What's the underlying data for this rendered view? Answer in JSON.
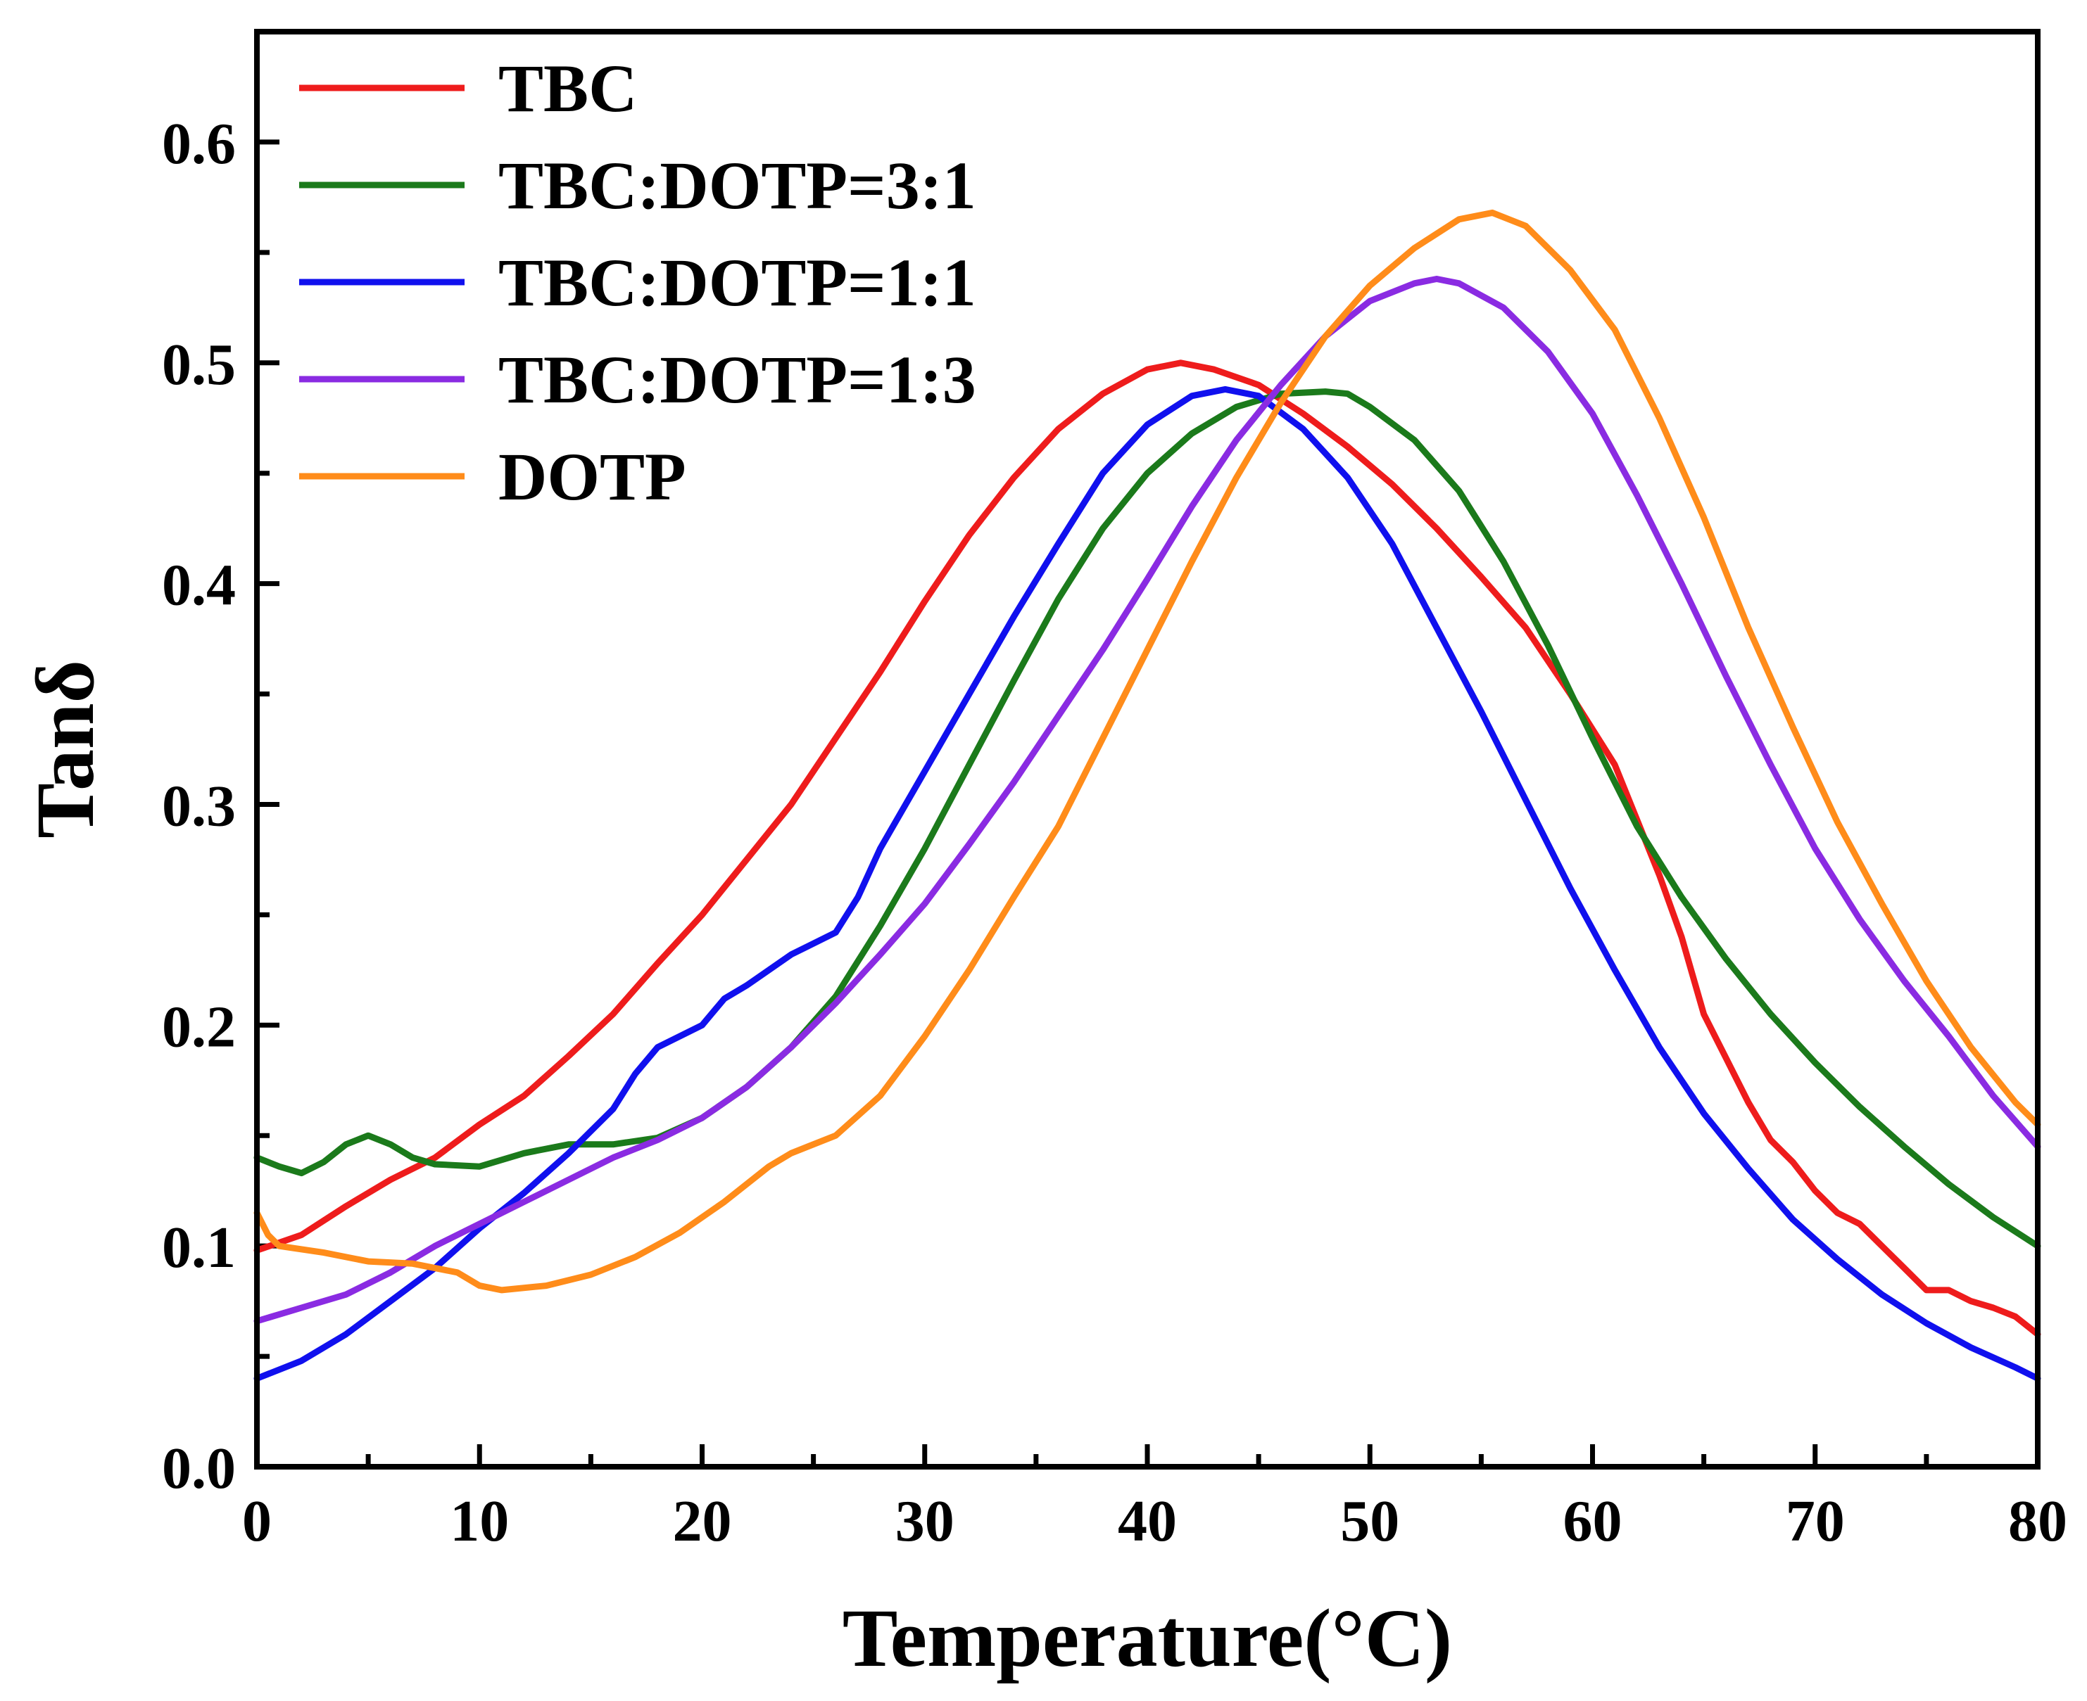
{
  "chart_data": {
    "type": "line",
    "title": "",
    "xlabel": "Temperature",
    "xlabel_unit": "(°C)",
    "ylabel": "Tanδ",
    "xlim": [
      0,
      80
    ],
    "ylim": [
      0,
      0.65
    ],
    "xticks": [
      "0",
      "10",
      "20",
      "30",
      "40",
      "50",
      "60",
      "70",
      "80"
    ],
    "yticks": [
      "0.0",
      "0.1",
      "0.2",
      "0.3",
      "0.4",
      "0.5",
      "0.6"
    ],
    "legend_position": "top-left",
    "series": [
      {
        "name": "TBC",
        "color": "#ee1c1c",
        "points": [
          [
            0,
            0.098
          ],
          [
            2,
            0.105
          ],
          [
            4,
            0.118
          ],
          [
            6,
            0.13
          ],
          [
            8,
            0.14
          ],
          [
            10,
            0.155
          ],
          [
            12,
            0.168
          ],
          [
            14,
            0.186
          ],
          [
            16,
            0.205
          ],
          [
            18,
            0.228
          ],
          [
            20,
            0.25
          ],
          [
            22,
            0.275
          ],
          [
            24,
            0.3
          ],
          [
            26,
            0.33
          ],
          [
            28,
            0.36
          ],
          [
            30,
            0.392
          ],
          [
            32,
            0.422
          ],
          [
            34,
            0.448
          ],
          [
            36,
            0.47
          ],
          [
            38,
            0.486
          ],
          [
            40,
            0.497
          ],
          [
            41.5,
            0.5
          ],
          [
            43,
            0.497
          ],
          [
            45,
            0.49
          ],
          [
            47,
            0.477
          ],
          [
            49,
            0.462
          ],
          [
            51,
            0.445
          ],
          [
            53,
            0.425
          ],
          [
            55,
            0.403
          ],
          [
            57,
            0.38
          ],
          [
            59,
            0.35
          ],
          [
            61,
            0.318
          ],
          [
            63,
            0.268
          ],
          [
            64,
            0.24
          ],
          [
            65,
            0.205
          ],
          [
            66,
            0.185
          ],
          [
            67,
            0.165
          ],
          [
            68,
            0.148
          ],
          [
            69,
            0.138
          ],
          [
            70,
            0.125
          ],
          [
            71,
            0.115
          ],
          [
            72,
            0.11
          ],
          [
            73,
            0.1
          ],
          [
            74,
            0.09
          ],
          [
            75,
            0.08
          ],
          [
            76,
            0.08
          ],
          [
            77,
            0.075
          ],
          [
            78,
            0.072
          ],
          [
            79,
            0.068
          ],
          [
            80,
            0.06
          ]
        ]
      },
      {
        "name": "TBC:DOTP=3:1",
        "color": "#1b7a1b",
        "points": [
          [
            0,
            0.14
          ],
          [
            1,
            0.136
          ],
          [
            2,
            0.133
          ],
          [
            3,
            0.138
          ],
          [
            4,
            0.146
          ],
          [
            5,
            0.15
          ],
          [
            6,
            0.146
          ],
          [
            7,
            0.14
          ],
          [
            8,
            0.137
          ],
          [
            10,
            0.136
          ],
          [
            12,
            0.142
          ],
          [
            14,
            0.146
          ],
          [
            16,
            0.146
          ],
          [
            18,
            0.149
          ],
          [
            20,
            0.158
          ],
          [
            22,
            0.172
          ],
          [
            24,
            0.19
          ],
          [
            26,
            0.213
          ],
          [
            28,
            0.245
          ],
          [
            30,
            0.28
          ],
          [
            32,
            0.318
          ],
          [
            34,
            0.356
          ],
          [
            36,
            0.393
          ],
          [
            38,
            0.425
          ],
          [
            40,
            0.45
          ],
          [
            42,
            0.468
          ],
          [
            44,
            0.48
          ],
          [
            46,
            0.486
          ],
          [
            48,
            0.487
          ],
          [
            49,
            0.486
          ],
          [
            50,
            0.48
          ],
          [
            52,
            0.465
          ],
          [
            54,
            0.442
          ],
          [
            56,
            0.41
          ],
          [
            58,
            0.372
          ],
          [
            60,
            0.33
          ],
          [
            62,
            0.29
          ],
          [
            64,
            0.258
          ],
          [
            66,
            0.23
          ],
          [
            68,
            0.205
          ],
          [
            70,
            0.183
          ],
          [
            72,
            0.163
          ],
          [
            74,
            0.145
          ],
          [
            76,
            0.128
          ],
          [
            78,
            0.113
          ],
          [
            80,
            0.1
          ]
        ]
      },
      {
        "name": "TBC:DOTP=1:1",
        "color": "#1010ee",
        "points": [
          [
            0,
            0.04
          ],
          [
            2,
            0.048
          ],
          [
            4,
            0.06
          ],
          [
            6,
            0.075
          ],
          [
            8,
            0.09
          ],
          [
            10,
            0.108
          ],
          [
            12,
            0.124
          ],
          [
            14,
            0.142
          ],
          [
            16,
            0.162
          ],
          [
            17,
            0.178
          ],
          [
            18,
            0.19
          ],
          [
            20,
            0.2
          ],
          [
            21,
            0.212
          ],
          [
            22,
            0.218
          ],
          [
            24,
            0.232
          ],
          [
            26,
            0.242
          ],
          [
            27,
            0.258
          ],
          [
            28,
            0.28
          ],
          [
            30,
            0.315
          ],
          [
            32,
            0.35
          ],
          [
            34,
            0.385
          ],
          [
            36,
            0.418
          ],
          [
            38,
            0.45
          ],
          [
            40,
            0.472
          ],
          [
            42,
            0.485
          ],
          [
            43.5,
            0.488
          ],
          [
            45,
            0.485
          ],
          [
            47,
            0.47
          ],
          [
            49,
            0.448
          ],
          [
            51,
            0.418
          ],
          [
            53,
            0.38
          ],
          [
            55,
            0.342
          ],
          [
            57,
            0.302
          ],
          [
            59,
            0.262
          ],
          [
            61,
            0.225
          ],
          [
            63,
            0.19
          ],
          [
            65,
            0.16
          ],
          [
            67,
            0.135
          ],
          [
            69,
            0.112
          ],
          [
            71,
            0.094
          ],
          [
            73,
            0.078
          ],
          [
            75,
            0.065
          ],
          [
            77,
            0.054
          ],
          [
            79,
            0.045
          ],
          [
            80,
            0.04
          ]
        ]
      },
      {
        "name": "TBC:DOTP=1:3",
        "color": "#8a2be2",
        "points": [
          [
            0,
            0.066
          ],
          [
            2,
            0.072
          ],
          [
            4,
            0.078
          ],
          [
            6,
            0.088
          ],
          [
            8,
            0.1
          ],
          [
            10,
            0.11
          ],
          [
            12,
            0.12
          ],
          [
            14,
            0.13
          ],
          [
            16,
            0.14
          ],
          [
            18,
            0.148
          ],
          [
            20,
            0.158
          ],
          [
            22,
            0.172
          ],
          [
            24,
            0.19
          ],
          [
            26,
            0.21
          ],
          [
            28,
            0.232
          ],
          [
            30,
            0.255
          ],
          [
            32,
            0.282
          ],
          [
            34,
            0.31
          ],
          [
            36,
            0.34
          ],
          [
            38,
            0.37
          ],
          [
            40,
            0.402
          ],
          [
            42,
            0.435
          ],
          [
            44,
            0.465
          ],
          [
            46,
            0.49
          ],
          [
            48,
            0.512
          ],
          [
            50,
            0.528
          ],
          [
            52,
            0.536
          ],
          [
            53,
            0.538
          ],
          [
            54,
            0.536
          ],
          [
            56,
            0.525
          ],
          [
            58,
            0.505
          ],
          [
            60,
            0.477
          ],
          [
            62,
            0.44
          ],
          [
            64,
            0.4
          ],
          [
            66,
            0.358
          ],
          [
            68,
            0.318
          ],
          [
            70,
            0.28
          ],
          [
            72,
            0.248
          ],
          [
            74,
            0.22
          ],
          [
            76,
            0.195
          ],
          [
            78,
            0.168
          ],
          [
            80,
            0.145
          ]
        ]
      },
      {
        "name": "DOTP",
        "color": "#ff8c1a",
        "points": [
          [
            0,
            0.115
          ],
          [
            0.5,
            0.105
          ],
          [
            1,
            0.1
          ],
          [
            3,
            0.097
          ],
          [
            5,
            0.093
          ],
          [
            7,
            0.092
          ],
          [
            9,
            0.088
          ],
          [
            10,
            0.082
          ],
          [
            11,
            0.08
          ],
          [
            13,
            0.082
          ],
          [
            15,
            0.087
          ],
          [
            17,
            0.095
          ],
          [
            19,
            0.106
          ],
          [
            21,
            0.12
          ],
          [
            23,
            0.136
          ],
          [
            24,
            0.142
          ],
          [
            26,
            0.15
          ],
          [
            28,
            0.168
          ],
          [
            30,
            0.195
          ],
          [
            32,
            0.225
          ],
          [
            34,
            0.258
          ],
          [
            36,
            0.29
          ],
          [
            38,
            0.33
          ],
          [
            40,
            0.37
          ],
          [
            42,
            0.41
          ],
          [
            44,
            0.448
          ],
          [
            46,
            0.482
          ],
          [
            48,
            0.512
          ],
          [
            50,
            0.535
          ],
          [
            52,
            0.552
          ],
          [
            54,
            0.565
          ],
          [
            55.5,
            0.568
          ],
          [
            57,
            0.562
          ],
          [
            59,
            0.542
          ],
          [
            61,
            0.515
          ],
          [
            63,
            0.475
          ],
          [
            65,
            0.43
          ],
          [
            67,
            0.38
          ],
          [
            69,
            0.335
          ],
          [
            71,
            0.292
          ],
          [
            73,
            0.255
          ],
          [
            75,
            0.22
          ],
          [
            77,
            0.19
          ],
          [
            79,
            0.165
          ],
          [
            80,
            0.155
          ]
        ]
      }
    ]
  }
}
